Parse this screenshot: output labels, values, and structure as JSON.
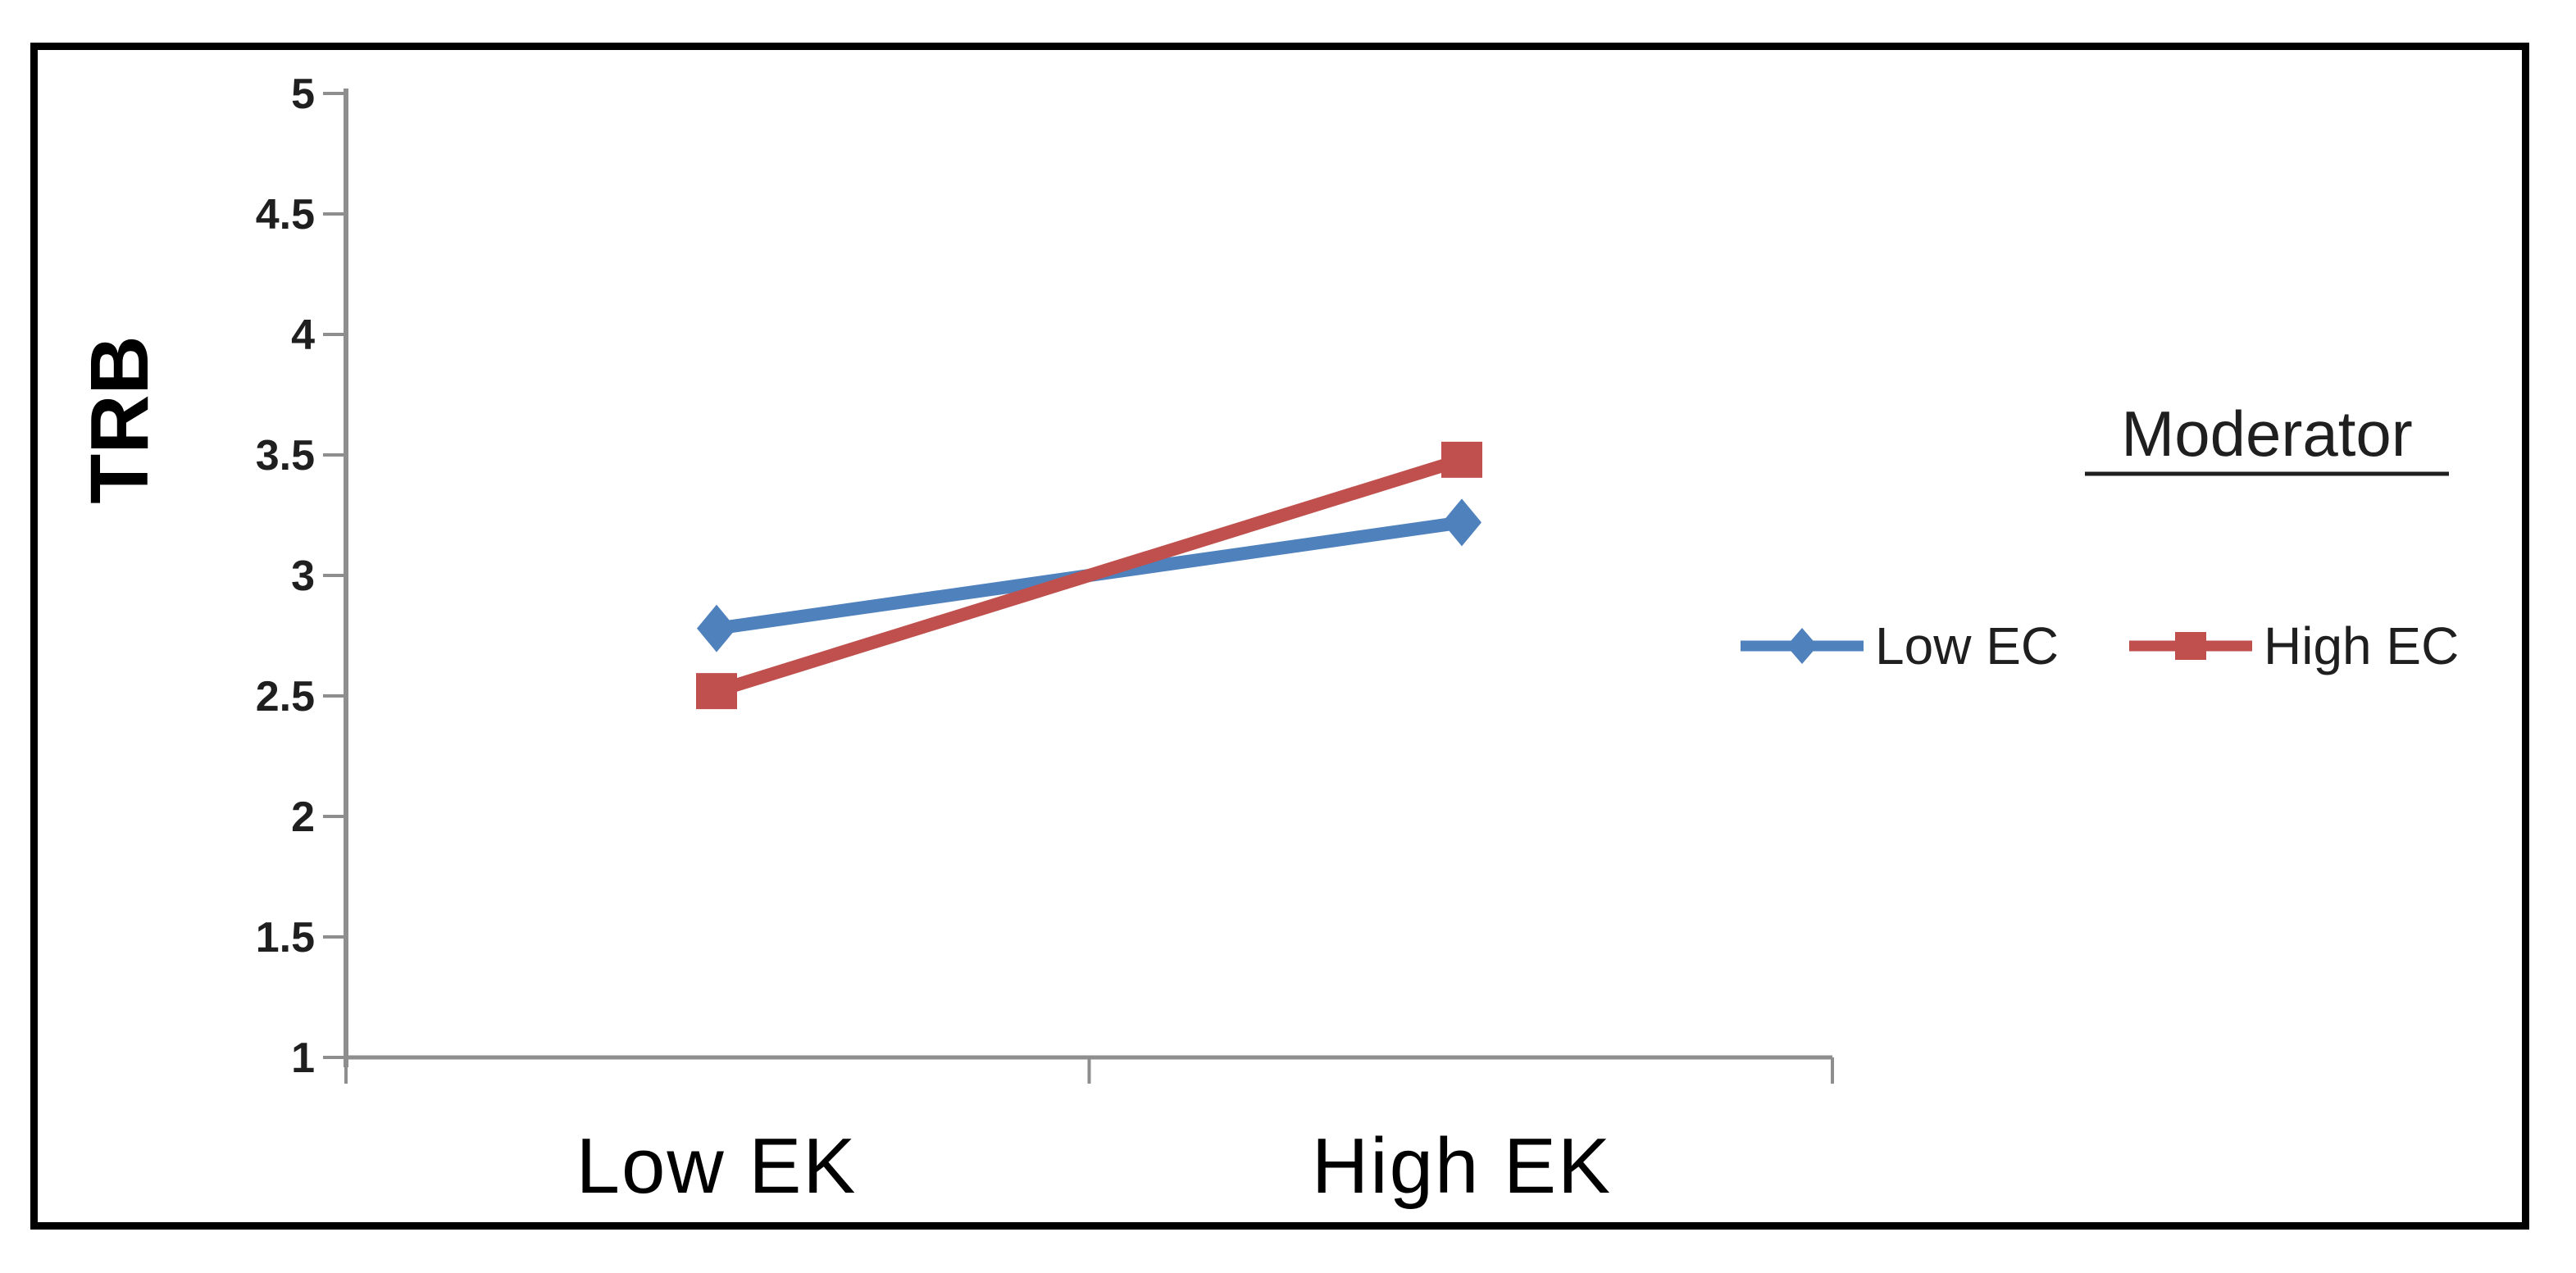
{
  "figure": {
    "background_color": "#ffffff",
    "frame_border_color": "#000000",
    "axis_color": "#8e8e8e",
    "tick_label_color": "#1f1f1f",
    "text_color": "#000000"
  },
  "chart_data": {
    "type": "line",
    "title": "",
    "xlabel": "",
    "ylabel": "TRB",
    "categories": [
      "Low EK",
      "High EK"
    ],
    "series": [
      {
        "name": "Low EC",
        "values": [
          2.78,
          3.22
        ],
        "color": "#4f81bd",
        "marker": "diamond"
      },
      {
        "name": "High EC",
        "values": [
          2.52,
          3.48
        ],
        "color": "#c0504d",
        "marker": "square"
      }
    ],
    "ylim": [
      1,
      5
    ],
    "ytick_step": 0.5,
    "yticks": [
      "5",
      "4.5",
      "4",
      "3.5",
      "3",
      "2.5",
      "2",
      "1.5",
      "1"
    ],
    "ytick_values": [
      5,
      4.5,
      4,
      3.5,
      3,
      2.5,
      2,
      1.5,
      1
    ],
    "grid": false,
    "legend_title": "Moderator",
    "legend_position": "right",
    "legend_entries": [
      "Low EC",
      "High EC"
    ]
  }
}
